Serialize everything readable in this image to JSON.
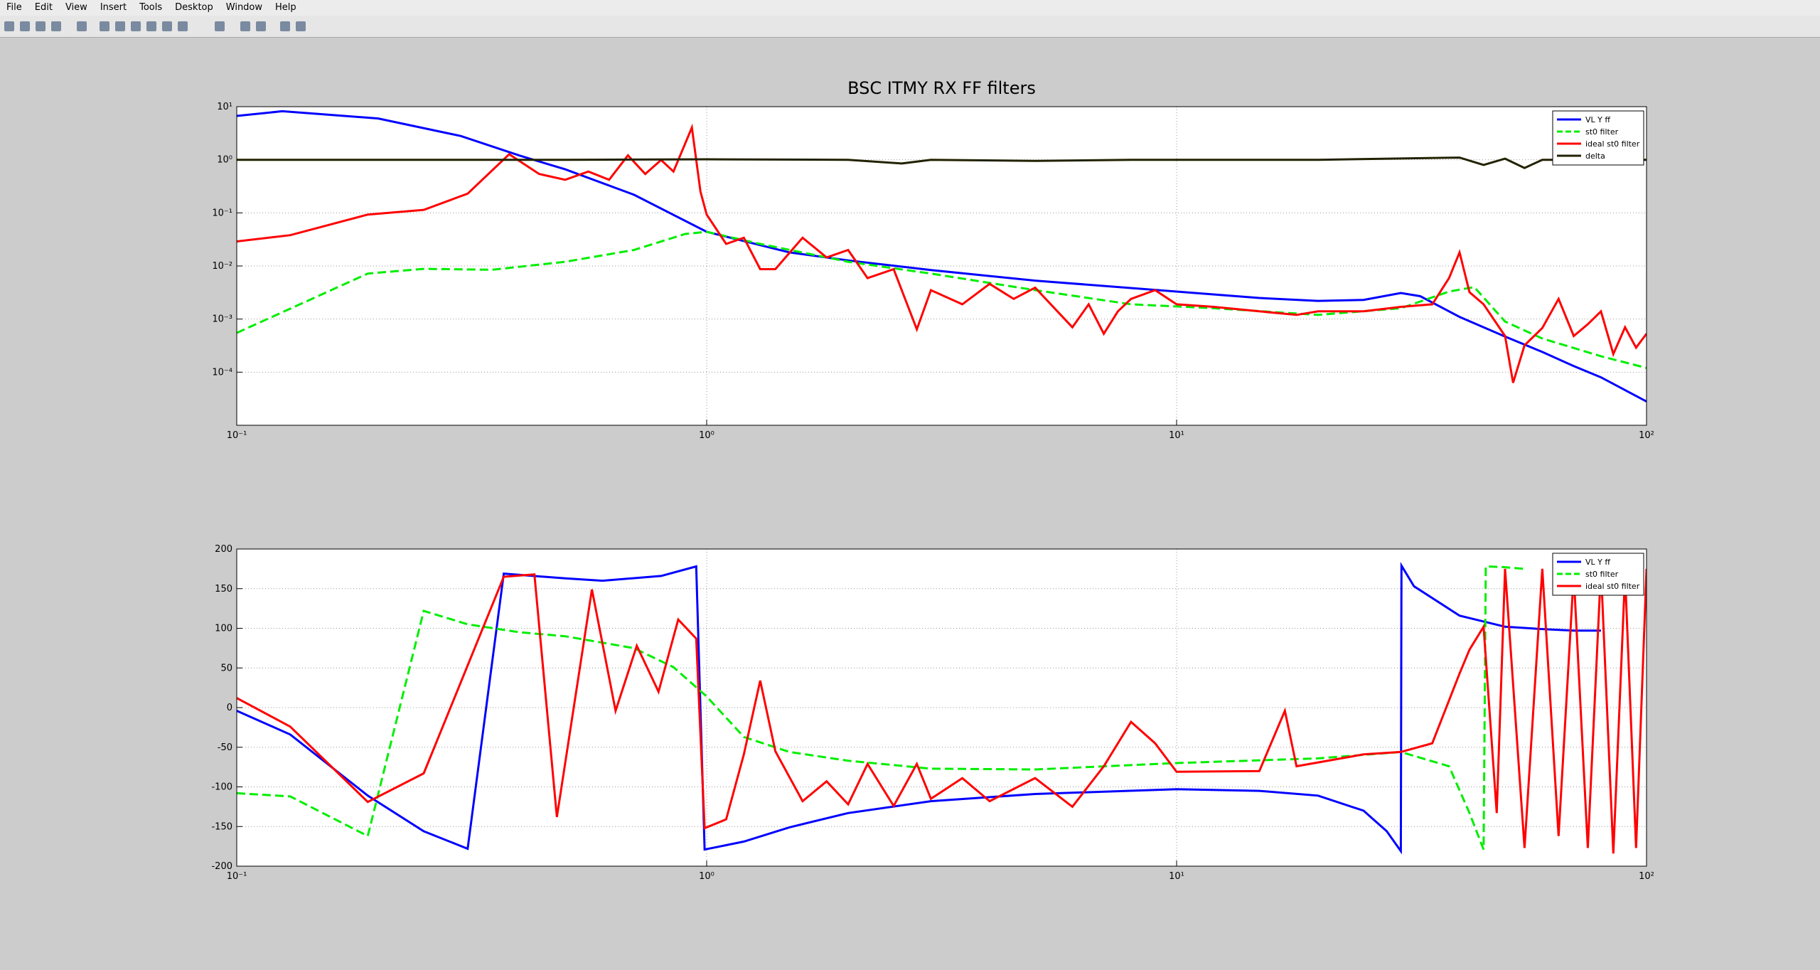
{
  "menu": [
    "File",
    "Edit",
    "View",
    "Insert",
    "Tools",
    "Desktop",
    "Window",
    "Help"
  ],
  "chart_data": [
    {
      "type": "line",
      "title": "BSC ITMY RX FF filters",
      "xscale": "log",
      "yscale": "log",
      "grid": true,
      "legend": "northeast",
      "xlim": [
        0.1,
        100
      ],
      "ylim": [
        1e-05,
        10
      ],
      "xticks": [
        {
          "value": 0.1,
          "label": "10⁻¹"
        },
        {
          "value": 1,
          "label": "10⁰"
        },
        {
          "value": 10,
          "label": "10¹"
        },
        {
          "value": 100,
          "label": "10²"
        }
      ],
      "yticks": [
        {
          "value": 0.0001,
          "label": "10⁻⁴"
        },
        {
          "value": 0.001,
          "label": "10⁻³"
        },
        {
          "value": 0.01,
          "label": "10⁻²"
        },
        {
          "value": 0.1,
          "label": "10⁻¹"
        },
        {
          "value": 1,
          "label": "10⁰"
        },
        {
          "value": 10,
          "label": "10¹"
        }
      ],
      "series": [
        {
          "name": "VL Y ff",
          "color": "#0000ff",
          "style": "solid",
          "x": [
            0.1,
            0.125,
            0.2,
            0.3,
            0.4,
            0.5,
            0.7,
            1,
            1.5,
            2,
            3,
            5,
            10,
            15,
            20,
            25,
            30,
            33,
            40,
            50,
            60,
            70,
            80,
            100
          ],
          "values": [
            6.7,
            8.2,
            6,
            2.8,
            1.2,
            0.66,
            0.22,
            0.044,
            0.018,
            0.0127,
            0.0084,
            0.0053,
            0.0033,
            0.0025,
            0.0022,
            0.0023,
            0.0031,
            0.0027,
            0.0011,
            0.00047,
            0.00024,
            0.00013,
            8e-05,
            2.8e-05
          ]
        },
        {
          "name": "st0 filter",
          "color": "#00ee00",
          "style": "dashed",
          "x": [
            0.1,
            0.19,
            0.25,
            0.35,
            0.5,
            0.7,
            0.9,
            1,
            1.3,
            2,
            3,
            5,
            8,
            12,
            20,
            30,
            38,
            43,
            50,
            60,
            80,
            100
          ],
          "values": [
            0.00055,
            0.0072,
            0.0088,
            0.0085,
            0.012,
            0.02,
            0.04,
            0.044,
            0.026,
            0.012,
            0.0072,
            0.0035,
            0.0019,
            0.0016,
            0.0012,
            0.0016,
            0.0033,
            0.004,
            0.0009,
            0.00043,
            0.0002,
            0.00012
          ]
        },
        {
          "name": "ideal st0 filter",
          "color": "#ff0000",
          "style": "solid",
          "x": [
            0.1,
            0.13,
            0.19,
            0.25,
            0.31,
            0.38,
            0.44,
            0.5,
            0.56,
            0.62,
            0.68,
            0.74,
            0.8,
            0.85,
            0.93,
            0.97,
            1,
            1.1,
            1.2,
            1.3,
            1.4,
            1.6,
            1.8,
            2,
            2.2,
            2.5,
            2.8,
            3,
            3.5,
            4,
            4.5,
            5,
            6,
            6.5,
            7,
            7.5,
            8,
            9,
            10,
            12,
            15,
            18,
            20,
            25,
            30,
            35,
            38,
            40,
            42,
            45,
            50,
            52,
            55,
            60,
            65,
            70,
            75,
            80,
            85,
            90,
            95,
            100
          ],
          "values": [
            0.029,
            0.038,
            0.093,
            0.114,
            0.23,
            1.27,
            0.54,
            0.42,
            0.6,
            0.42,
            1.21,
            0.54,
            0.99,
            0.6,
            4.05,
            0.25,
            0.093,
            0.026,
            0.034,
            0.0087,
            0.0087,
            0.034,
            0.0145,
            0.02,
            0.0059,
            0.0087,
            0.00064,
            0.0035,
            0.0019,
            0.0046,
            0.0024,
            0.0039,
            0.0007,
            0.0019,
            0.00053,
            0.0014,
            0.0024,
            0.0035,
            0.0019,
            0.0017,
            0.0014,
            0.0012,
            0.0014,
            0.0014,
            0.0017,
            0.0019,
            0.0059,
            0.018,
            0.0032,
            0.0019,
            0.00048,
            6.3e-05,
            0.00032,
            0.00068,
            0.0024,
            0.00048,
            0.0008,
            0.0014,
            0.00022,
            0.0007,
            0.00029,
            0.00053
          ]
        },
        {
          "name": "delta",
          "color": "#222200",
          "style": "solid",
          "x": [
            0.1,
            0.5,
            1,
            2,
            2.6,
            3,
            5,
            8,
            20,
            40,
            45,
            50,
            55,
            60,
            100
          ],
          "values": [
            1,
            1,
            1.02,
            1,
            0.85,
            1,
            0.95,
            1,
            1,
            1.1,
            0.8,
            1.05,
            0.7,
            1,
            1
          ]
        }
      ]
    },
    {
      "type": "line",
      "xscale": "log",
      "yscale": "linear",
      "grid": true,
      "legend": "northeast",
      "xlim": [
        0.1,
        100
      ],
      "ylim": [
        -200,
        200
      ],
      "xticks": [
        {
          "value": 0.1,
          "label": "10⁻¹"
        },
        {
          "value": 1,
          "label": "10⁰"
        },
        {
          "value": 10,
          "label": "10¹"
        },
        {
          "value": 100,
          "label": "10²"
        }
      ],
      "yticks": [
        -200,
        -150,
        -100,
        -50,
        0,
        50,
        100,
        150,
        200
      ],
      "series": [
        {
          "name": "VL Y ff",
          "color": "#0000ff",
          "style": "solid",
          "x": [
            0.1,
            0.13,
            0.19,
            0.25,
            0.31,
            0.37,
            0.5,
            0.6,
            0.8,
            0.95,
            0.99,
            1.2,
            1.5,
            2,
            3,
            5,
            10,
            15,
            20,
            25,
            28,
            30,
            30.1,
            32,
            40,
            50,
            60,
            70,
            80
          ],
          "values": [
            -4,
            -34,
            -111,
            -156,
            -178,
            169,
            163,
            160,
            166,
            178,
            -179,
            -169,
            -151,
            -133,
            -118,
            -109,
            -103,
            -105,
            -111,
            -130,
            -156,
            -181,
            179,
            153,
            116,
            102,
            99,
            97,
            97
          ]
        },
        {
          "name": "st0 filter",
          "color": "#00ee00",
          "style": "dashed",
          "x": [
            0.1,
            0.13,
            0.19,
            0.25,
            0.31,
            0.4,
            0.5,
            0.7,
            0.85,
            1,
            1.2,
            1.5,
            2,
            3,
            5,
            10,
            20,
            30,
            38,
            42,
            45,
            45.5,
            50,
            55
          ],
          "values": [
            -108,
            -112,
            -162,
            122,
            105,
            95,
            90,
            75,
            51,
            14,
            -37,
            -56,
            -67,
            -77,
            -78,
            -70,
            -64,
            -56,
            -74,
            -133,
            -179,
            178,
            177,
            175
          ]
        },
        {
          "name": "ideal st0 filter",
          "color": "#ff0000",
          "style": "solid",
          "x": [
            0.1,
            0.13,
            0.19,
            0.25,
            0.37,
            0.43,
            0.48,
            0.57,
            0.64,
            0.71,
            0.79,
            0.87,
            0.95,
            0.99,
            1.1,
            1.2,
            1.3,
            1.4,
            1.6,
            1.8,
            2,
            2.2,
            2.5,
            2.8,
            3,
            3.5,
            4,
            5,
            6,
            7,
            8,
            9,
            10,
            15,
            17,
            18,
            25,
            30,
            35,
            40,
            42,
            45,
            48,
            50,
            55,
            60,
            65,
            70,
            75,
            80,
            85,
            90,
            95,
            100
          ],
          "values": [
            12,
            -24,
            -119,
            -83,
            165,
            168,
            -138,
            149,
            -4,
            78,
            20,
            111,
            87,
            -152,
            -141,
            -59,
            34,
            -55,
            -118,
            -93,
            -122,
            -71,
            -124,
            -71,
            -115,
            -89,
            -118,
            -89,
            -125,
            -74,
            -18,
            -45,
            -81,
            -80,
            -4,
            -74,
            -59,
            -56,
            -45,
            43,
            73,
            102,
            -133,
            175,
            -177,
            175,
            -162,
            168,
            -177,
            175,
            -184,
            168,
            -177,
            175
          ]
        }
      ]
    }
  ]
}
